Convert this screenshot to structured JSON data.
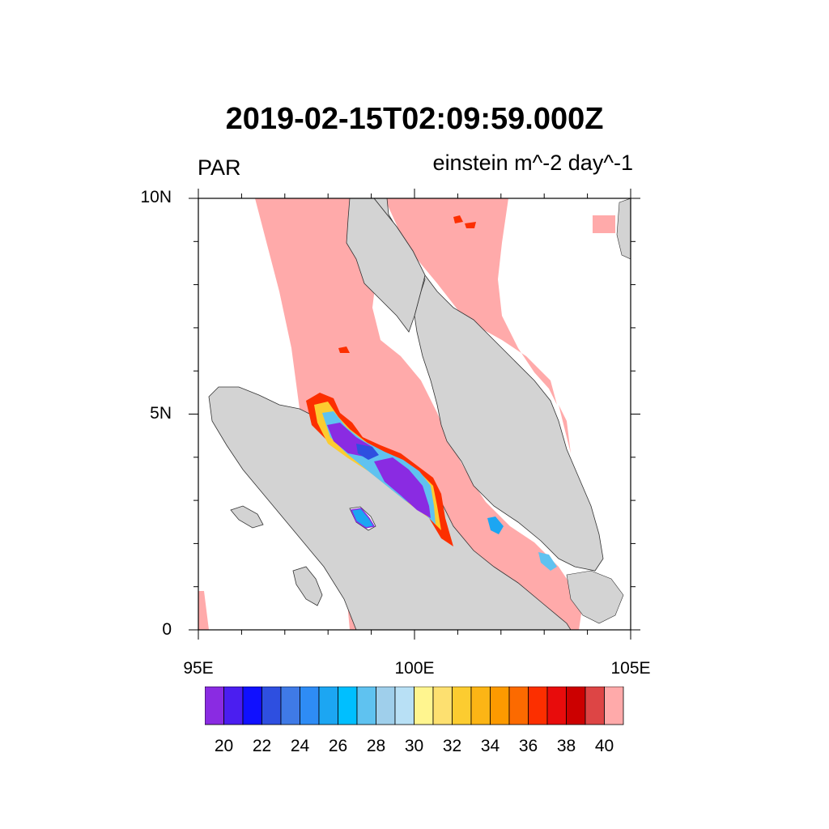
{
  "title": "2019-02-15T02:09:59.000Z",
  "left_string": "PAR",
  "right_string": "einstein m^-2 day^-1",
  "map": {
    "lon_range": [
      95,
      105
    ],
    "lat_range": [
      0,
      10
    ],
    "lon_ticks": [
      {
        "value": 95,
        "label": "95E"
      },
      {
        "value": 100,
        "label": "100E"
      },
      {
        "value": 105,
        "label": "105E"
      }
    ],
    "lat_ticks": [
      {
        "value": 0,
        "label": "0"
      },
      {
        "value": 5,
        "label": "5N"
      },
      {
        "value": 10,
        "label": "10N"
      }
    ],
    "land_color": "#d3d3d3",
    "ocean_color": "#ffffff",
    "coast_color": "#333333"
  },
  "colorbar": {
    "colors": [
      "#8a2be2",
      "#4b1ef0",
      "#1010ff",
      "#2e4fe0",
      "#3f7ae6",
      "#2e8cf5",
      "#1ca6f2",
      "#00bfff",
      "#5fc2f0",
      "#9fcfeb",
      "#b8e0f5",
      "#fff58f",
      "#fde070",
      "#fccc30",
      "#fcb515",
      "#fc9a00",
      "#fc6a00",
      "#fc2f00",
      "#e80c0c",
      "#cc0000",
      "#dd4545",
      "#ffaaaa"
    ],
    "labels": [
      "20",
      "22",
      "24",
      "26",
      "28",
      "30",
      "32",
      "34",
      "36",
      "38",
      "40"
    ]
  }
}
